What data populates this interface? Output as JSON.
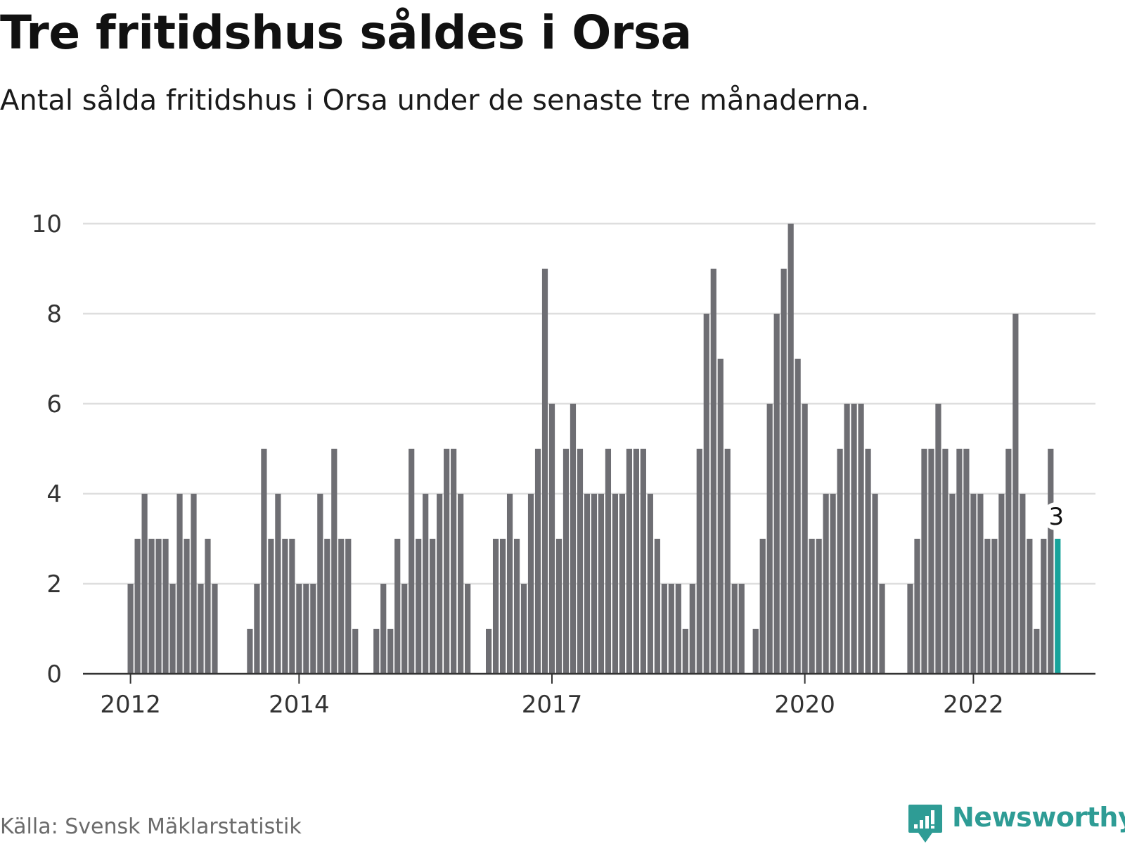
{
  "title": "Tre fritidshus såldes i Orsa",
  "subtitle": "Antal sålda fritidshus i Orsa under de senaste tre månaderna.",
  "source": "Källa: Svensk Mäklarstatistik",
  "brand": "Newsworthy",
  "colors": {
    "bar": "#6e6e73",
    "highlight": "#18a39b",
    "grid": "#dedede",
    "axis": "#333333",
    "brand": "#2e9c95"
  },
  "chart_data": {
    "type": "bar",
    "x_unit": "month",
    "ylim": [
      0,
      10
    ],
    "yticks": [
      "0",
      "2",
      "4",
      "6",
      "8",
      "10"
    ],
    "xticks": [
      "2012",
      "2014",
      "2017",
      "2020",
      "2022"
    ],
    "grid": true,
    "highlight_label": "3",
    "series": [
      {
        "values": [
          2,
          3,
          4,
          3,
          3,
          3,
          2,
          4,
          3,
          4,
          2,
          3,
          2,
          null,
          null,
          null,
          null,
          1,
          2,
          5,
          3,
          4,
          3,
          3,
          2,
          2,
          2,
          4,
          3,
          5,
          3,
          3,
          1,
          null,
          null,
          1,
          2,
          1,
          3,
          2,
          5,
          3,
          4,
          3,
          4,
          5,
          5,
          4,
          2,
          null,
          null,
          1,
          3,
          3,
          4,
          3,
          2,
          4,
          5,
          9,
          6,
          3,
          5,
          6,
          5,
          4,
          4,
          4,
          5,
          4,
          4,
          5,
          5,
          5,
          4,
          3,
          2,
          2,
          2,
          1,
          2,
          5,
          8,
          9,
          7,
          5,
          2,
          2,
          null,
          1,
          3,
          6,
          8,
          9,
          10,
          7,
          6,
          3,
          3,
          4,
          4,
          5,
          6,
          6,
          6,
          5,
          4,
          2,
          null,
          null,
          null,
          2,
          3,
          5,
          5,
          6,
          5,
          4,
          5,
          5,
          4,
          4,
          3,
          3,
          4,
          5,
          8,
          4,
          3,
          1,
          3,
          5,
          3
        ]
      }
    ]
  }
}
